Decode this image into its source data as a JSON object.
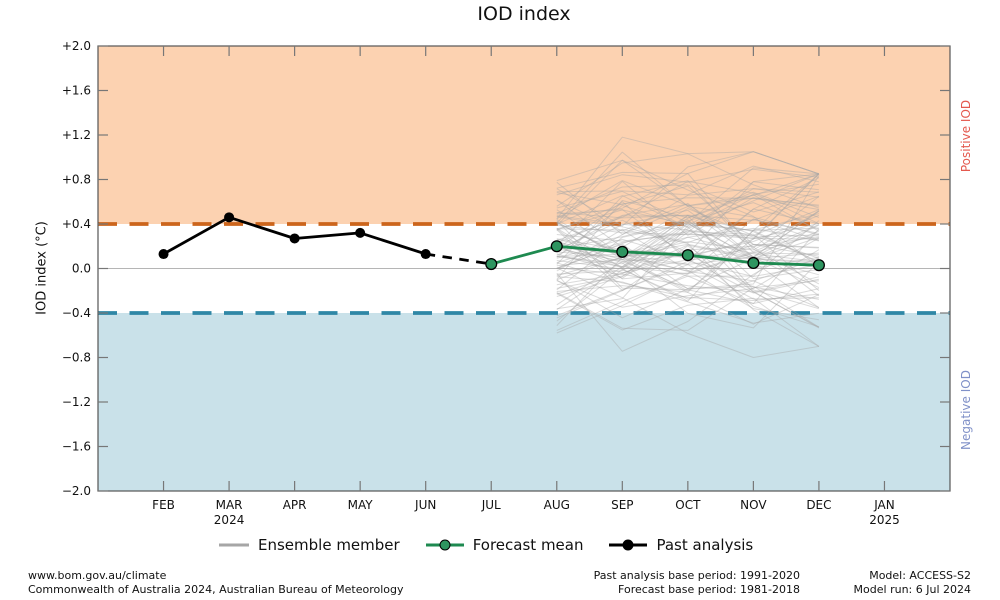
{
  "title": "IOD index",
  "colors": {
    "positive_fill": "#FCD2B1",
    "negative_fill": "#C9E1E9",
    "positive_dash": "#CC651C",
    "negative_dash": "#2F87A6",
    "positive_label": "#E4594E",
    "negative_label": "#8091C8",
    "forecast_line": "#1E8A50",
    "forecast_marker": "#2E9560",
    "past_line": "#000000",
    "ensemble_gray": "#A6A6A6",
    "zero_line": "#B5B5B5",
    "spine": "#555555",
    "tick": "#777777"
  },
  "chart_data": {
    "type": "line",
    "title": "IOD index",
    "ylabel": "IOD index (°C)",
    "ylim": [
      -2.0,
      2.0
    ],
    "grid": false,
    "y_tick_values": [
      2.0,
      1.6,
      1.2,
      0.8,
      0.4,
      0.0,
      -0.4,
      -0.8,
      -1.2,
      -1.6,
      -2.0
    ],
    "y_tick_labels": [
      "+2.0",
      "+1.6",
      "+1.2",
      "+0.8",
      "+0.4",
      "0.0",
      "−0.4",
      "−0.8",
      "−1.2",
      "−1.6",
      "−2.0"
    ],
    "x_tick_labels": [
      "FEB",
      "MAR",
      "APR",
      "MAY",
      "JUN",
      "JUL",
      "AUG",
      "SEP",
      "OCT",
      "NOV",
      "DEC",
      "JAN"
    ],
    "x_year_labels": [
      {
        "month": "MAR",
        "label": "2024"
      },
      {
        "month": "JAN",
        "label": "2025"
      }
    ],
    "thresholds": {
      "positive_iod": 0.4,
      "negative_iod": -0.4
    },
    "region_labels": {
      "positive": "Positive IOD",
      "negative": "Negative IOD"
    },
    "series": [
      {
        "name": "Past analysis",
        "type": "line+marker",
        "months": [
          "FEB",
          "MAR",
          "APR",
          "MAY",
          "JUN"
        ],
        "values": [
          0.13,
          0.46,
          0.27,
          0.32,
          0.13
        ]
      },
      {
        "name": "Forecast mean",
        "type": "line+marker",
        "months": [
          "JUL",
          "AUG",
          "SEP",
          "OCT",
          "NOV",
          "DEC"
        ],
        "values": [
          0.04,
          0.2,
          0.15,
          0.12,
          0.05,
          0.03
        ]
      },
      {
        "name": "Ensemble members",
        "type": "line-bundle",
        "months": [
          "AUG",
          "SEP",
          "OCT",
          "NOV",
          "DEC"
        ],
        "count": 96,
        "envelope_min": [
          -0.58,
          -0.85,
          -0.93,
          -0.8,
          -0.7
        ],
        "envelope_max": [
          1.08,
          1.25,
          1.25,
          1.05,
          0.85
        ]
      }
    ],
    "connector": {
      "from_month": "JUN",
      "from_value": 0.13,
      "to_month": "JUL",
      "to_value": 0.04,
      "style": "dashed"
    }
  },
  "legend": {
    "items": [
      {
        "label": "Ensemble member",
        "swatch": "gray-line"
      },
      {
        "label": "Forecast mean",
        "swatch": "green-line-dot"
      },
      {
        "label": "Past analysis",
        "swatch": "black-line-dot"
      }
    ]
  },
  "footer": {
    "left_line1": "www.bom.gov.au/climate",
    "left_line2": "Commonwealth of Australia 2024, Australian Bureau of Meteorology",
    "mid_line1": "Past analysis base period: 1991-2020",
    "mid_line2": "Forecast base period: 1981-2018",
    "right_line1": "Model: ACCESS-S2",
    "right_line2": "Model run: 6 Jul 2024"
  }
}
